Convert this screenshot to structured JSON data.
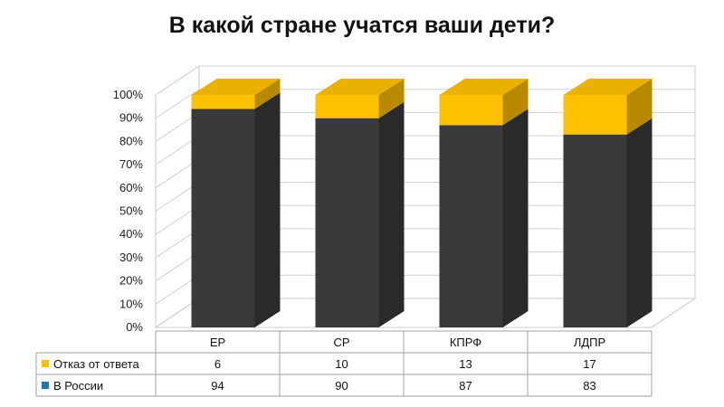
{
  "chart_data": {
    "type": "bar",
    "stacked": true,
    "three_d": true,
    "title": "В какой стране учатся ваши дети?",
    "categories": [
      "ЕР",
      "СР",
      "КПРФ",
      "ЛДПР"
    ],
    "series": [
      {
        "name": "В России",
        "values": [
          94,
          90,
          87,
          83
        ],
        "color": "#3a3a3a"
      },
      {
        "name": "Отказ от ответа",
        "values": [
          6,
          10,
          13,
          17
        ],
        "color": "#ffc000"
      }
    ],
    "legend_marker_colors": {
      "В России": "#1f77b4",
      "Отказ от ответа": "#ffc000"
    },
    "ylim": [
      0,
      100
    ],
    "yticks": [
      "0%",
      "10%",
      "20%",
      "30%",
      "40%",
      "50%",
      "60%",
      "70%",
      "80%",
      "90%",
      "100%"
    ],
    "grid": true,
    "data_table": true,
    "table_row_order": [
      "Отказ от ответа",
      "В России"
    ]
  }
}
